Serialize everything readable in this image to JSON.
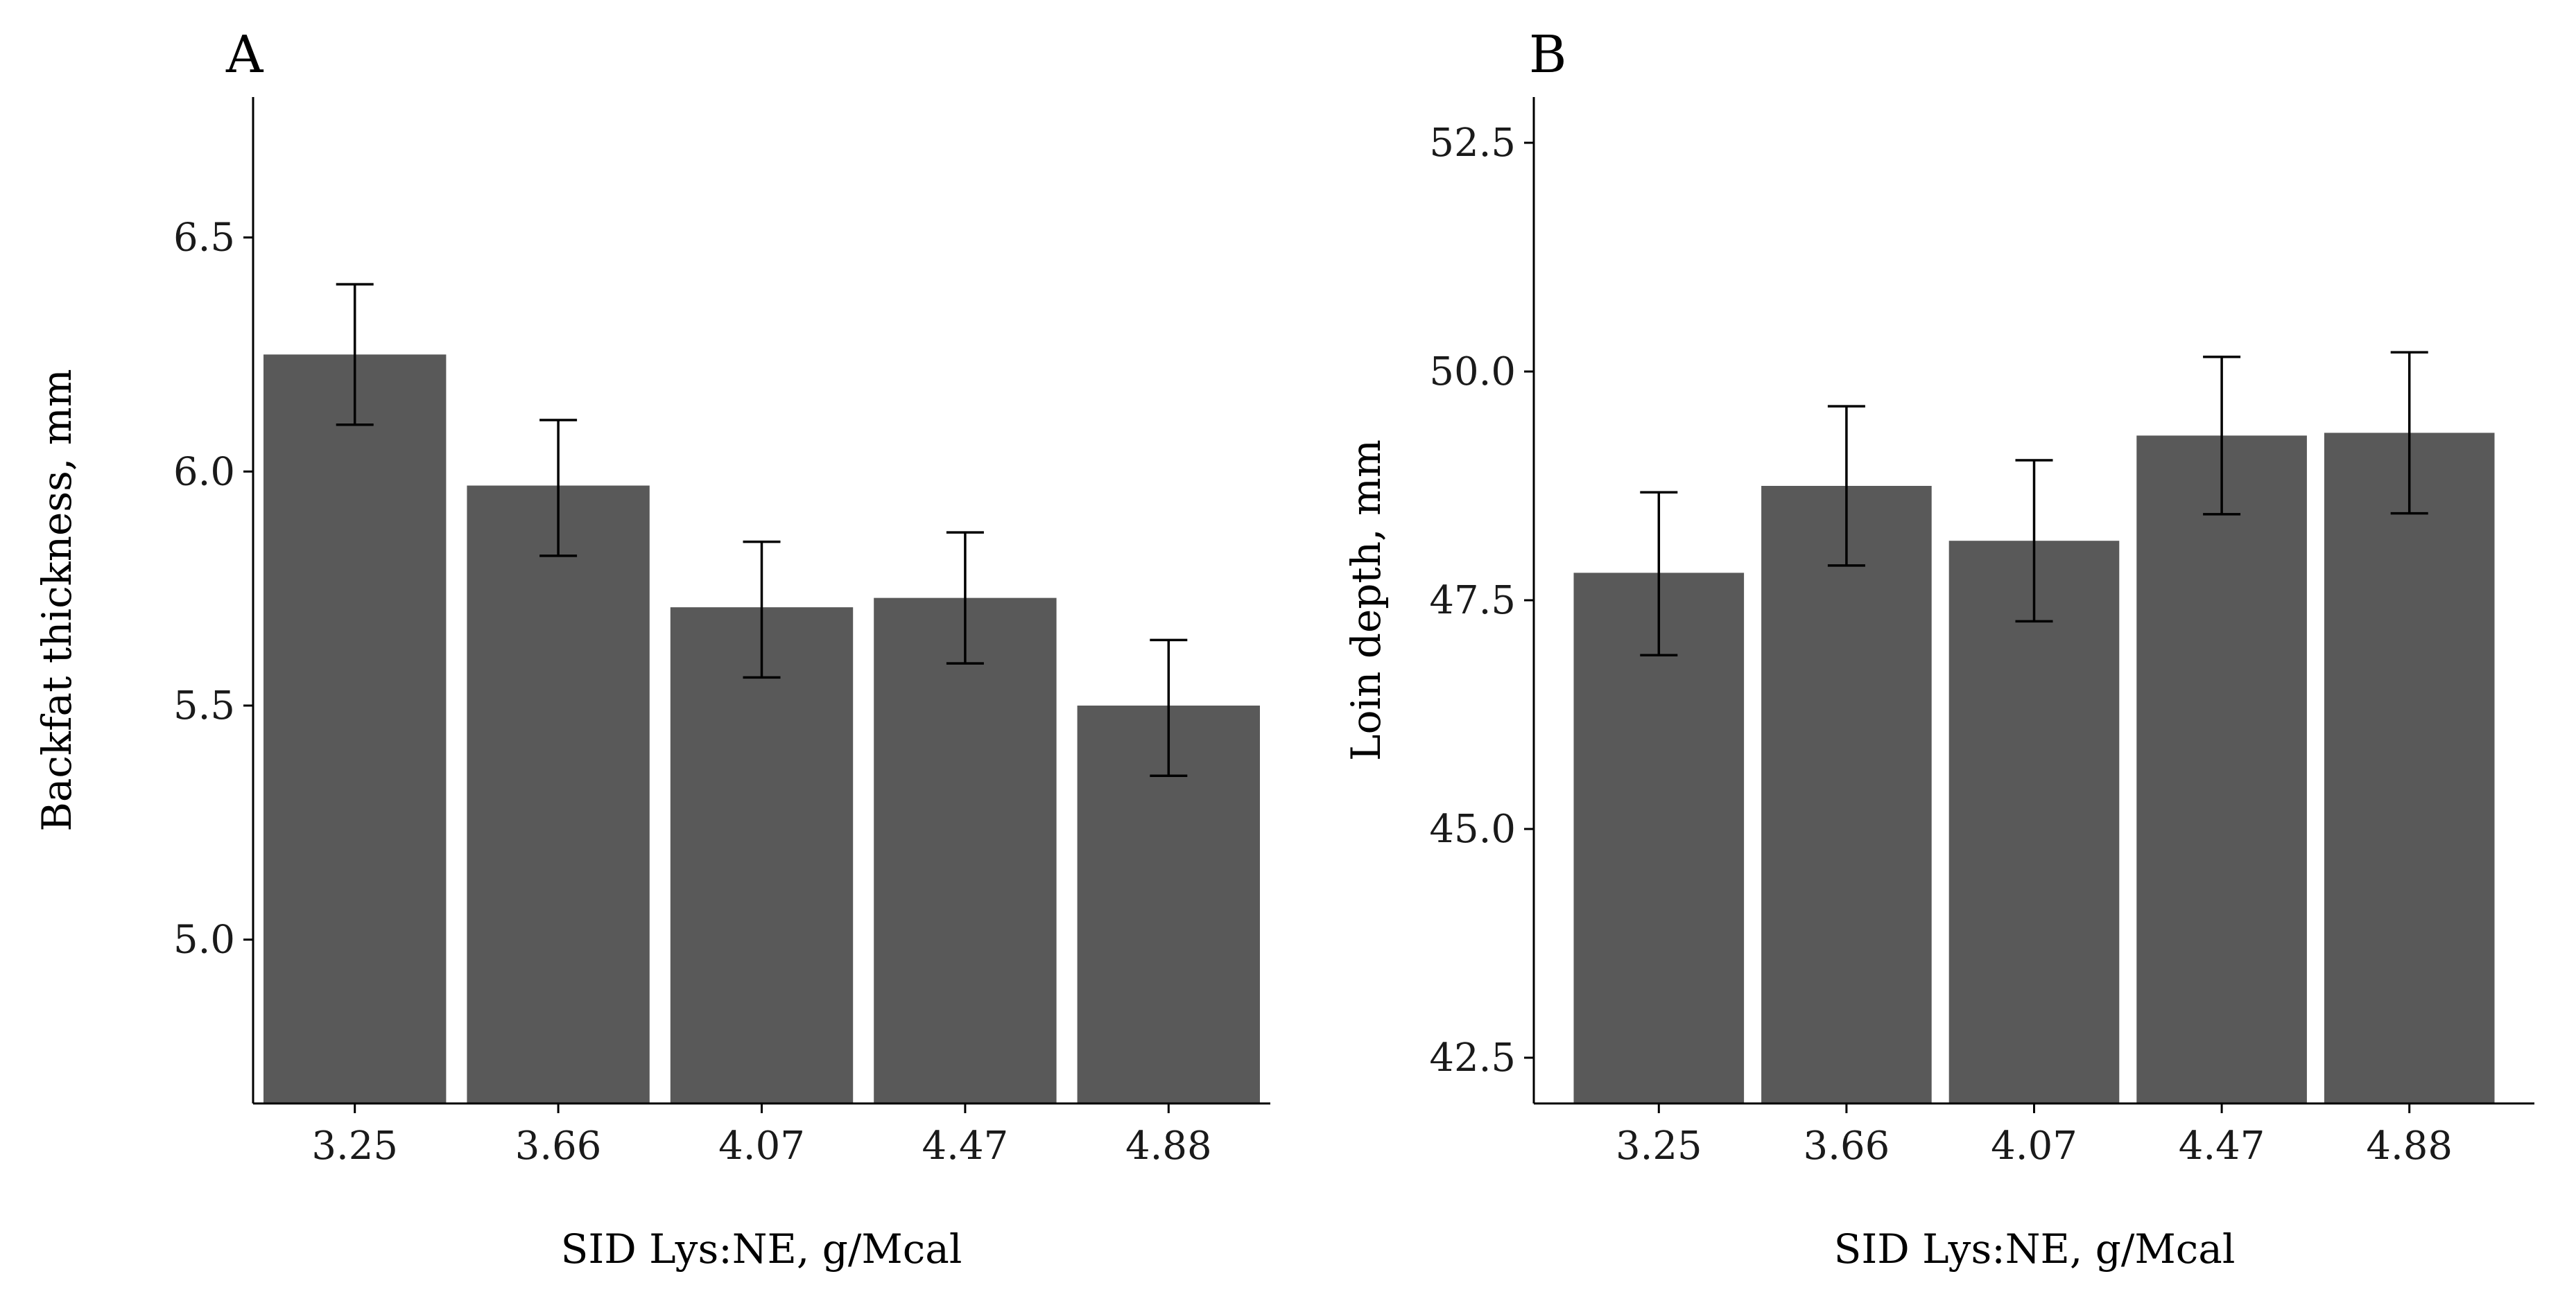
{
  "chart_data": [
    {
      "type": "bar",
      "panel": "A",
      "categories": [
        "3.25",
        "3.66",
        "4.07",
        "4.47",
        "4.88"
      ],
      "values": [
        6.25,
        5.97,
        5.71,
        5.73,
        5.5
      ],
      "error_low": [
        6.1,
        5.82,
        5.56,
        5.59,
        5.35
      ],
      "error_high": [
        6.4,
        6.11,
        5.85,
        5.87,
        5.64
      ],
      "xlabel": "SID Lys:NE, g/Mcal",
      "ylabel": "Backfat thickness, mm",
      "ylim": [
        4.65,
        6.8
      ],
      "yticks": [
        "5.0",
        "5.5",
        "6.0",
        "6.5"
      ],
      "bar_color": "#595959"
    },
    {
      "type": "bar",
      "panel": "B",
      "categories": [
        "3.25",
        "3.66",
        "4.07",
        "4.47",
        "4.88"
      ],
      "values": [
        47.8,
        48.75,
        48.15,
        49.3,
        49.33
      ],
      "error_low": [
        46.9,
        47.88,
        47.27,
        48.44,
        48.45
      ],
      "error_high": [
        48.68,
        49.62,
        49.03,
        50.16,
        50.21
      ],
      "xlabel": "SID Lys:NE, g/Mcal",
      "ylabel": "Loin depth, mm",
      "ylim": [
        42.0,
        53.0
      ],
      "yticks": [
        "42.5",
        "45.0",
        "47.5",
        "50.0",
        "52.5"
      ],
      "bar_color": "#595959"
    }
  ]
}
